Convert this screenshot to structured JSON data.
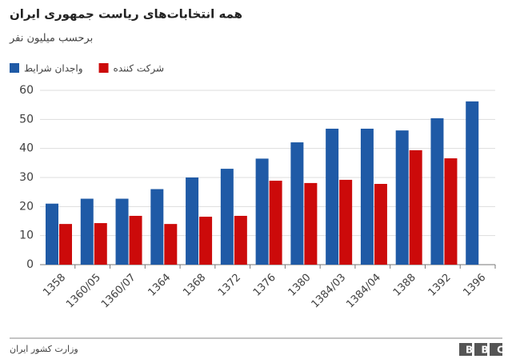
{
  "chart_data": {
    "type": "bar",
    "title": "همه انتخابات‌های ریاست جمهوری ایران",
    "subtitle": "برحسب میلیون نفر",
    "categories": [
      "1358",
      "1360/05",
      "1360/07",
      "1364",
      "1368",
      "1372",
      "1376",
      "1380",
      "1384/03",
      "1384/04",
      "1388",
      "1392",
      "1396"
    ],
    "series": [
      {
        "name": "واجدان شرایط",
        "color": "#1f5aa6",
        "values": [
          21,
          22.7,
          22.7,
          26,
          30,
          33,
          36.5,
          42.1,
          46.8,
          46.8,
          46.2,
          50.4,
          56.2
        ]
      },
      {
        "name": "شرکت کننده",
        "color": "#cc0a0a",
        "values": [
          14,
          14.3,
          16.8,
          14,
          16.5,
          16.8,
          28.9,
          28.1,
          29.2,
          27.8,
          39.4,
          36.6,
          null
        ]
      }
    ],
    "ylim": [
      0,
      60
    ],
    "yticks": [
      0,
      10,
      20,
      30,
      40,
      50,
      60
    ],
    "grid": true,
    "source": "وزارت کشور ایران",
    "logo": "BBC"
  }
}
